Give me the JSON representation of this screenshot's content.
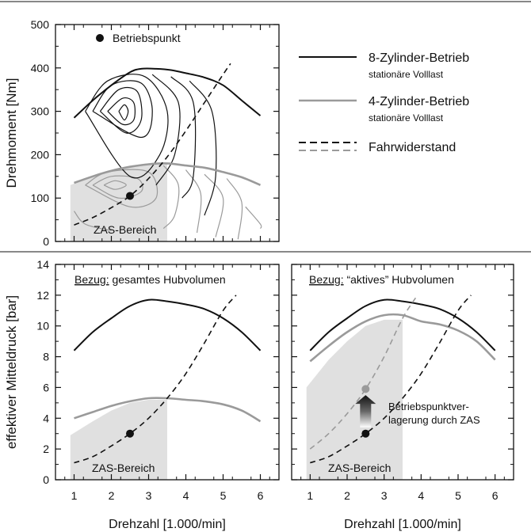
{
  "chart_data": [
    {
      "id": "torque",
      "type": "line",
      "ylabel": "Drehmoment [Nm]",
      "xlim": [
        0.5,
        6.5
      ],
      "ylim": [
        0,
        500
      ],
      "yticks": [
        0,
        100,
        200,
        300,
        400,
        500
      ],
      "ytick_labels": [
        "0",
        "100",
        "200",
        "300",
        "400",
        "500"
      ],
      "minor_yticks": [
        50,
        150,
        250,
        350,
        450
      ],
      "x_minor_ticks": [
        0.75,
        1.25,
        1.75,
        2.25,
        2.75,
        3.25,
        3.75,
        4.25,
        4.75,
        5.25,
        5.75,
        6.25
      ],
      "xticks": [
        1,
        2,
        3,
        4,
        5,
        6
      ],
      "shaded_area": {
        "label": "ZAS-Bereich",
        "x": [
          0.9,
          0.9,
          1.5,
          2.0,
          2.5,
          3.0,
          3.5,
          3.5
        ],
        "y": [
          0,
          130,
          150,
          165,
          175,
          180,
          180,
          0
        ],
        "color": "#e0e0e0"
      },
      "contours_full_load": [
        [
          [
            2.2,
            300
          ],
          [
            2.35,
            315
          ],
          [
            2.45,
            300
          ],
          [
            2.35,
            280
          ],
          [
            2.2,
            300
          ]
        ],
        [
          [
            1.9,
            300
          ],
          [
            2.3,
            330
          ],
          [
            2.6,
            320
          ],
          [
            2.6,
            280
          ],
          [
            2.3,
            270
          ],
          [
            1.9,
            300
          ]
        ],
        [
          [
            1.7,
            300
          ],
          [
            2.2,
            350
          ],
          [
            2.7,
            345
          ],
          [
            2.8,
            280
          ],
          [
            2.4,
            250
          ],
          [
            1.7,
            300
          ]
        ],
        [
          [
            1.5,
            300
          ],
          [
            2.0,
            360
          ],
          [
            2.8,
            365
          ],
          [
            3.1,
            300
          ],
          [
            2.8,
            240
          ],
          [
            1.5,
            300
          ]
        ],
        [
          [
            1.3,
            300
          ],
          [
            1.9,
            370
          ],
          [
            2.9,
            380
          ],
          [
            3.5,
            300
          ],
          [
            3.3,
            200
          ],
          [
            2.5,
            150
          ],
          [
            1.3,
            300
          ]
        ],
        [
          [
            3.1,
            385
          ],
          [
            3.8,
            320
          ],
          [
            3.7,
            200
          ],
          [
            3.2,
            130
          ]
        ],
        [
          [
            3.6,
            380
          ],
          [
            4.2,
            320
          ],
          [
            4.2,
            150
          ],
          [
            3.9,
            100
          ]
        ],
        [
          [
            4.1,
            370
          ],
          [
            4.7,
            300
          ],
          [
            4.8,
            150
          ],
          [
            4.5,
            60
          ]
        ]
      ],
      "contours_part_load": [
        [
          [
            1.8,
            130
          ],
          [
            2.1,
            140
          ],
          [
            2.4,
            130
          ],
          [
            2.1,
            120
          ],
          [
            1.8,
            130
          ]
        ],
        [
          [
            1.5,
            130
          ],
          [
            2.0,
            150
          ],
          [
            2.7,
            145
          ],
          [
            2.8,
            115
          ],
          [
            2.2,
            100
          ],
          [
            1.5,
            130
          ]
        ],
        [
          [
            1.3,
            130
          ],
          [
            1.9,
            160
          ],
          [
            3.0,
            160
          ],
          [
            3.2,
            100
          ],
          [
            2.5,
            80
          ],
          [
            1.3,
            130
          ]
        ],
        [
          [
            3.4,
            175
          ],
          [
            3.8,
            130
          ],
          [
            3.7,
            60
          ],
          [
            3.4,
            30
          ]
        ],
        [
          [
            4.0,
            165
          ],
          [
            4.4,
            110
          ],
          [
            4.3,
            20
          ]
        ],
        [
          [
            4.5,
            155
          ],
          [
            5.0,
            100
          ],
          [
            4.8,
            10
          ]
        ],
        [
          [
            5.1,
            145
          ],
          [
            5.5,
            90
          ],
          [
            5.4,
            5
          ]
        ],
        [
          [
            1.0,
            70
          ],
          [
            1.3,
            40
          ],
          [
            2.0,
            25
          ]
        ],
        [
          [
            5.6,
            80
          ],
          [
            6.0,
            40
          ],
          [
            6.0,
            30
          ]
        ]
      ],
      "series": [
        {
          "name": "8-Zylinder-Betrieb",
          "style": "solid-black",
          "x": [
            1.0,
            1.5,
            2.0,
            2.5,
            2.8,
            3.2,
            3.6,
            4.0,
            4.5,
            5.0,
            5.5,
            6.0
          ],
          "y": [
            285,
            325,
            360,
            390,
            398,
            398,
            395,
            388,
            378,
            360,
            325,
            290
          ]
        },
        {
          "name": "4-Zylinder-Betrieb",
          "style": "solid-gray",
          "x": [
            1.0,
            1.5,
            2.0,
            2.5,
            3.0,
            3.5,
            4.0,
            4.5,
            5.0,
            5.5,
            6.0
          ],
          "y": [
            135,
            150,
            163,
            172,
            178,
            180,
            175,
            170,
            160,
            148,
            130
          ]
        },
        {
          "name": "Fahrwiderstand",
          "style": "dashed-black",
          "x": [
            1.0,
            1.5,
            2.0,
            2.5,
            3.0,
            3.5,
            4.0,
            4.5,
            5.0,
            5.2
          ],
          "y": [
            38,
            55,
            78,
            105,
            145,
            195,
            255,
            320,
            385,
            410
          ]
        }
      ],
      "points": [
        {
          "x": 2.5,
          "y": 105,
          "color": "#111111"
        }
      ],
      "legend_point": {
        "label": "Betriebspunkt"
      },
      "annotations": [
        {
          "text": "ZAS-Bereich"
        }
      ]
    },
    {
      "id": "pme-total",
      "type": "line",
      "ylabel": "effektiver Mitteldruck [bar]",
      "xlabel": "Drehzahl [1.000/min]",
      "xlim": [
        0.5,
        6.5
      ],
      "ylim": [
        0,
        14
      ],
      "yticks": [
        0,
        2,
        4,
        6,
        8,
        10,
        12,
        14
      ],
      "ytick_labels": [
        "0",
        "2",
        "4",
        "6",
        "8",
        "10",
        "12",
        "14"
      ],
      "minor_yticks": [
        1,
        3,
        5,
        7,
        9,
        11,
        13
      ],
      "x_minor_ticks": [
        0.75,
        1.25,
        1.75,
        2.25,
        2.75,
        3.25,
        3.75,
        4.25,
        4.75,
        5.25,
        5.75,
        6.25
      ],
      "xticks": [
        1,
        2,
        3,
        4,
        5,
        6
      ],
      "xtick_labels": [
        "1",
        "2",
        "3",
        "4",
        "5",
        "6"
      ],
      "header_underlined": "Bezug:",
      "header_rest": " gesamtes Hubvolumen",
      "shaded_area": {
        "label": "ZAS-Bereich",
        "x": [
          0.9,
          0.9,
          1.5,
          2.0,
          2.5,
          3.0,
          3.5,
          3.5
        ],
        "y": [
          0,
          2.9,
          3.8,
          4.5,
          5.0,
          5.2,
          5.2,
          0
        ],
        "color": "#e0e0e0"
      },
      "series": [
        {
          "name": "8-Zylinder-Betrieb",
          "style": "solid-black",
          "x": [
            1.0,
            1.5,
            2.0,
            2.5,
            3.0,
            3.5,
            4.0,
            4.5,
            5.0,
            5.5,
            6.0
          ],
          "y": [
            8.4,
            9.6,
            10.5,
            11.3,
            11.7,
            11.6,
            11.4,
            11.1,
            10.5,
            9.6,
            8.4
          ]
        },
        {
          "name": "4-Zylinder-Betrieb",
          "style": "solid-gray",
          "x": [
            1.0,
            1.5,
            2.0,
            2.5,
            3.0,
            3.5,
            4.0,
            4.5,
            5.0,
            5.5,
            6.0
          ],
          "y": [
            4.0,
            4.4,
            4.8,
            5.1,
            5.3,
            5.3,
            5.2,
            5.1,
            4.9,
            4.5,
            3.8
          ]
        },
        {
          "name": "Fahrwiderstand",
          "style": "dashed-black",
          "x": [
            1.0,
            1.5,
            2.0,
            2.5,
            3.0,
            3.5,
            4.0,
            4.5,
            5.0,
            5.35
          ],
          "y": [
            1.1,
            1.5,
            2.2,
            3.0,
            4.0,
            5.3,
            6.9,
            8.9,
            11.0,
            12.0
          ]
        }
      ],
      "points": [
        {
          "x": 2.5,
          "y": 3.0,
          "color": "#111111"
        }
      ],
      "annotations": [
        {
          "text": "ZAS-Bereich"
        }
      ]
    },
    {
      "id": "pme-active",
      "type": "line",
      "xlabel": "Drehzahl [1.000/min]",
      "xlim": [
        0.5,
        6.5
      ],
      "ylim": [
        0,
        14
      ],
      "yticks": [
        0,
        2,
        4,
        6,
        8,
        10,
        12,
        14
      ],
      "minor_yticks": [
        1,
        3,
        5,
        7,
        9,
        11,
        13
      ],
      "x_minor_ticks": [
        0.75,
        1.25,
        1.75,
        2.25,
        2.75,
        3.25,
        3.75,
        4.25,
        4.75,
        5.25,
        5.75,
        6.25
      ],
      "xticks": [
        1,
        2,
        3,
        4,
        5,
        6
      ],
      "xtick_labels": [
        "1",
        "2",
        "3",
        "4",
        "5",
        "6"
      ],
      "header_underlined": "Bezug:",
      "header_rest": " “aktives” Hubvolumen",
      "shaded_area": {
        "label": "ZAS-Bereich",
        "x": [
          0.9,
          0.9,
          1.5,
          2.0,
          2.5,
          3.0,
          3.5,
          3.5
        ],
        "y": [
          0,
          6.0,
          7.8,
          9.0,
          10.0,
          10.4,
          10.4,
          0
        ],
        "color": "#e0e0e0"
      },
      "series": [
        {
          "name": "8-Zylinder-Betrieb",
          "style": "solid-black",
          "x": [
            1.0,
            1.5,
            2.0,
            2.5,
            3.0,
            3.5,
            4.0,
            4.5,
            5.0,
            5.5,
            6.0
          ],
          "y": [
            8.4,
            9.6,
            10.5,
            11.3,
            11.7,
            11.6,
            11.4,
            11.1,
            10.5,
            9.6,
            8.4
          ]
        },
        {
          "name": "4-Zylinder-Betrieb",
          "style": "solid-gray",
          "x": [
            1.0,
            1.5,
            2.0,
            2.5,
            3.0,
            3.5,
            4.0,
            4.5,
            5.0,
            5.5,
            6.0
          ],
          "y": [
            7.7,
            8.7,
            9.6,
            10.3,
            10.7,
            10.7,
            10.3,
            10.1,
            9.7,
            9.0,
            7.8
          ]
        },
        {
          "name": "Fahrwiderstand",
          "style": "dashed-black",
          "x": [
            1.0,
            1.5,
            2.0,
            2.5,
            3.0,
            3.5,
            4.0,
            4.5,
            5.0,
            5.35
          ],
          "y": [
            1.1,
            1.5,
            2.2,
            3.0,
            4.0,
            5.3,
            6.9,
            8.9,
            11.0,
            12.0
          ]
        },
        {
          "name": "Fahrwiderstand (4-Zylinder)",
          "style": "dashed-gray",
          "x": [
            1.0,
            1.5,
            2.0,
            2.5,
            3.0,
            3.5,
            3.9
          ],
          "y": [
            2.0,
            3.0,
            4.3,
            5.9,
            8.0,
            10.5,
            12.0
          ]
        }
      ],
      "points": [
        {
          "x": 2.5,
          "y": 3.0,
          "color": "#111111"
        },
        {
          "x": 2.5,
          "y": 5.9,
          "color": "#9a9a9a"
        }
      ],
      "arrow": {
        "x": 2.5,
        "from": 3.4,
        "to": 5.5
      },
      "annotations": [
        {
          "text": "ZAS-Bereich"
        },
        {
          "text": "Betriebspunktver-"
        },
        {
          "text": "lagerung durch ZAS"
        }
      ]
    }
  ],
  "legend": {
    "items": [
      {
        "label": "8-Zylinder-Betrieb",
        "sublabel": "stationäre Volllast",
        "color": "#111111",
        "dashed": false
      },
      {
        "label": "4-Zylinder-Betrieb",
        "sublabel": "stationäre Volllast",
        "color": "#9a9a9a",
        "dashed": false
      },
      {
        "label": "Fahrwiderstand",
        "sublabel": "",
        "color": "#111111",
        "dashed": true
      }
    ]
  },
  "colors": {
    "black": "#111111",
    "gray": "#9a9a9a",
    "shade": "#e0e0e0",
    "arrow": "#2a2a2a"
  }
}
